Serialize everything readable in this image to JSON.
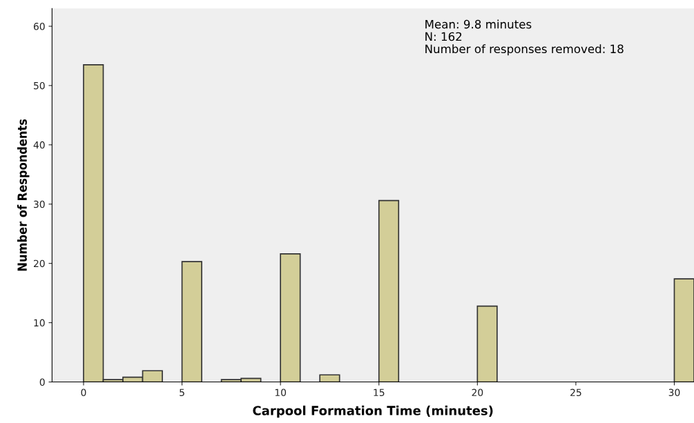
{
  "chart_data": {
    "type": "histogram",
    "xlabel": "Carpool Formation Time (minutes)",
    "ylabel": "Number of Respondents",
    "annotations": [
      "Mean: 9.8 minutes",
      "N: 162",
      "Number of responses removed: 18"
    ],
    "bins": [
      0,
      1,
      2,
      3,
      4,
      5,
      6,
      7,
      8,
      9,
      10,
      11,
      12,
      13,
      14,
      15,
      16,
      17,
      18,
      19,
      20,
      21,
      22,
      23,
      24,
      25,
      26,
      27,
      28,
      29,
      30,
      31
    ],
    "values": [
      53.5,
      0.4,
      0.8,
      1.9,
      0,
      20.3,
      0,
      0.4,
      0.6,
      0,
      21.6,
      0,
      1.2,
      0,
      0,
      30.6,
      0,
      0,
      0,
      0,
      12.8,
      0,
      0,
      0,
      0,
      0,
      0,
      0,
      0,
      0,
      17.4
    ],
    "color": "#d3ce98",
    "xlim": [
      -1.6,
      31
    ],
    "xticks": [
      0,
      5,
      10,
      15,
      20,
      25,
      30
    ],
    "ylim": [
      0,
      63
    ],
    "yticks": [
      0,
      10,
      20,
      30,
      40,
      50,
      60
    ],
    "grid": false
  }
}
